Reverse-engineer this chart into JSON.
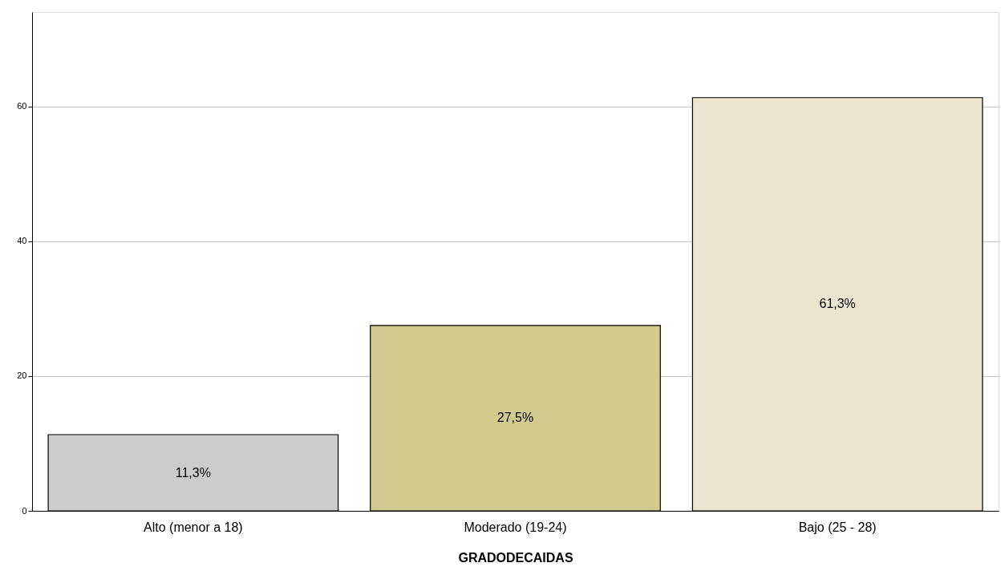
{
  "chart_data": {
    "type": "bar",
    "xlabel": "GRADODECAIDAS",
    "categories": [
      "Alto (menor a 18)",
      "Moderado (19-24)",
      "Bajo (25 - 28)"
    ],
    "values": [
      11.3,
      27.5,
      61.3
    ],
    "value_labels": [
      "11,3%",
      "27,5%",
      "61,3%"
    ],
    "colors": [
      "#cccccc",
      "#d1cb8f",
      "#ebe5cf"
    ],
    "ylim": [
      0,
      74
    ],
    "yticks": [
      0,
      20,
      40,
      60
    ],
    "grid": "y"
  }
}
